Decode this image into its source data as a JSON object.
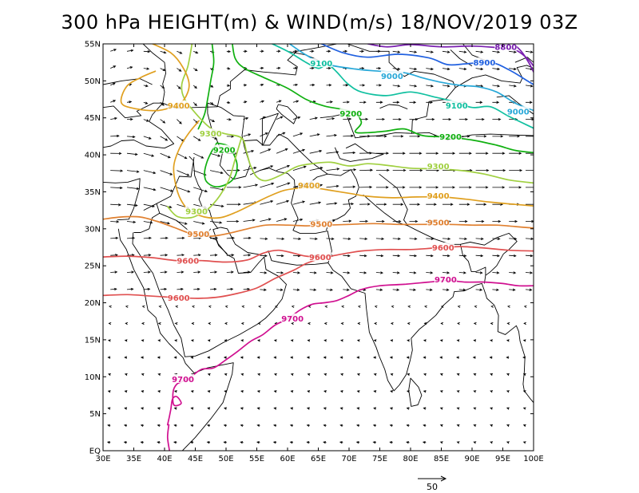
{
  "title": "300 hPa HEIGHT(m) & WIND(m/s) 18/NOV/2019 03Z",
  "map": {
    "lon_range": [
      30,
      100
    ],
    "lat_range": [
      0,
      55
    ],
    "lon_ticks": [
      "30E",
      "35E",
      "40E",
      "45E",
      "50E",
      "55E",
      "60E",
      "65E",
      "70E",
      "75E",
      "80E",
      "85E",
      "90E",
      "95E",
      "100E"
    ],
    "lat_ticks": [
      "EQ",
      "5N",
      "10N",
      "15N",
      "20N",
      "25N",
      "30N",
      "35N",
      "40N",
      "45N",
      "50N",
      "55N"
    ],
    "reference_vector": {
      "label": "50",
      "speed": 50
    },
    "contour_labels": [
      {
        "text": "8800",
        "color": "#7a1fb0",
        "lon": 95.5,
        "lat": 54.5
      },
      {
        "text": "8900",
        "color": "#2060e0",
        "lon": 92,
        "lat": 52.4
      },
      {
        "text": "9000",
        "color": "#28a8d8",
        "lon": 77,
        "lat": 50.6
      },
      {
        "text": "9000",
        "color": "#28a8d8",
        "lon": 97.5,
        "lat": 45.8
      },
      {
        "text": "9100",
        "color": "#10c0a0",
        "lon": 65.5,
        "lat": 52.3
      },
      {
        "text": "9100",
        "color": "#10c0a0",
        "lon": 87.5,
        "lat": 46.6
      },
      {
        "text": "9200",
        "color": "#10b010",
        "lon": 70.3,
        "lat": 45.5
      },
      {
        "text": "9200",
        "color": "#10b010",
        "lon": 86.5,
        "lat": 42.4
      },
      {
        "text": "9200",
        "color": "#10b010",
        "lon": 49.7,
        "lat": 40.6
      },
      {
        "text": "9300",
        "color": "#a0d040",
        "lon": 84.5,
        "lat": 38.4
      },
      {
        "text": "9300",
        "color": "#a0d040",
        "lon": 47.5,
        "lat": 42.8
      },
      {
        "text": "9300",
        "color": "#a0d040",
        "lon": 45.2,
        "lat": 32.3
      },
      {
        "text": "9400",
        "color": "#e0a020",
        "lon": 63.5,
        "lat": 35.8
      },
      {
        "text": "9400",
        "color": "#e0a020",
        "lon": 84.5,
        "lat": 34.4
      },
      {
        "text": "9400",
        "color": "#e0a020",
        "lon": 42.3,
        "lat": 46.6
      },
      {
        "text": "9500",
        "color": "#e08030",
        "lon": 45.5,
        "lat": 29.2
      },
      {
        "text": "9500",
        "color": "#e08030",
        "lon": 65.5,
        "lat": 30.6
      },
      {
        "text": "9500",
        "color": "#e08030",
        "lon": 84.5,
        "lat": 30.8
      },
      {
        "text": "9600",
        "color": "#e05050",
        "lon": 43.8,
        "lat": 25.6
      },
      {
        "text": "9600",
        "color": "#e05050",
        "lon": 42.3,
        "lat": 20.6
      },
      {
        "text": "9600",
        "color": "#e05050",
        "lon": 65.3,
        "lat": 26.1
      },
      {
        "text": "9600",
        "color": "#e05050",
        "lon": 85.3,
        "lat": 27.4
      },
      {
        "text": "9700",
        "color": "#d01090",
        "lon": 60.8,
        "lat": 17.8
      },
      {
        "text": "9700",
        "color": "#d01090",
        "lon": 43,
        "lat": 9.6
      },
      {
        "text": "9700",
        "color": "#d01090",
        "lon": 85.7,
        "lat": 23.1
      }
    ],
    "colors": {
      "c8800": "#7a1fb0",
      "c8900": "#2060e0",
      "c9000": "#28a8d8",
      "c9100": "#10c0a0",
      "c9200": "#10b010",
      "c9300": "#a0d040",
      "c9400": "#e0a020",
      "c9500": "#e08030",
      "c9600": "#e05050",
      "c9700": "#d01090",
      "wind": "#000000",
      "coast": "#000000"
    }
  }
}
